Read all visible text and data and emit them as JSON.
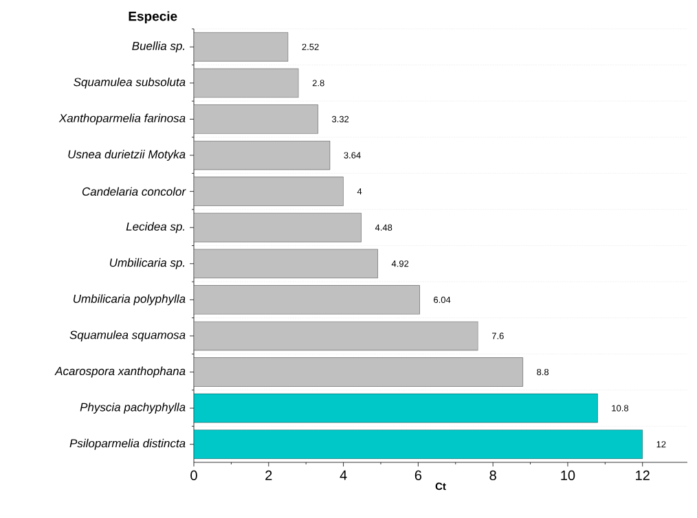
{
  "chart_data": {
    "type": "bar",
    "orientation": "horizontal",
    "ylabel": "Especie",
    "xlabel": "Ct",
    "categories": [
      "Buellia sp.",
      "Squamulea subsoluta",
      "Xanthoparmelia farinosa",
      "Usnea durietzii Motyka",
      "Candelaria concolor",
      "Lecidea sp.",
      "Umbilicaria sp.",
      "Umbilicaria polyphylla",
      "Squamulea squamosa",
      "Acarospora xanthophana",
      "Physcia pachyphylla",
      "Psiloparmelia distincta"
    ],
    "values": [
      2.52,
      2.8,
      3.32,
      3.64,
      4,
      4.48,
      4.92,
      6.04,
      7.6,
      8.8,
      10.8,
      12
    ],
    "colors": [
      "#c0c0c0",
      "#c0c0c0",
      "#c0c0c0",
      "#c0c0c0",
      "#c0c0c0",
      "#c0c0c0",
      "#c0c0c0",
      "#c0c0c0",
      "#c0c0c0",
      "#c0c0c0",
      "#00c8c8",
      "#00c8c8"
    ],
    "data_labels": true,
    "grid": "y",
    "xlim": [
      0,
      13.2
    ],
    "xticks": [
      0,
      2,
      4,
      6,
      8,
      10,
      12
    ]
  }
}
